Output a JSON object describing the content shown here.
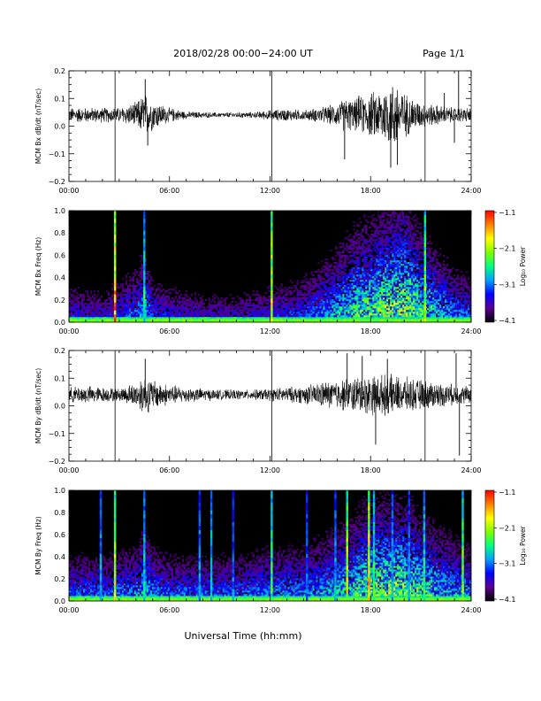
{
  "header": {
    "title": "2018/02/28  00:00−24:00 UT",
    "page": "Page 1/1"
  },
  "footer": {
    "xlabel": "Universal Time (hh:mm)"
  },
  "chart_data": [
    {
      "id": "bx_timeseries",
      "type": "line",
      "ylabel": "MCM Bx dB/dt (nT/sec)",
      "xlabel": "",
      "x_ticks": [
        "00:00",
        "06:00",
        "12:00",
        "18:00",
        "24:00"
      ],
      "xlim_hours": [
        0,
        24
      ],
      "ylim": [
        -0.2,
        0.2
      ],
      "y_ticks": [
        -0.2,
        -0.1,
        0.0,
        0.1,
        0.2
      ],
      "y_tick_labels": [
        "−0.2",
        "−0.1",
        "0.0",
        "0.1",
        "0.2"
      ],
      "baseline": 0.04,
      "vertical_lines_hours": [
        2.75,
        12.1,
        21.25
      ],
      "envelope": {
        "x_hours": [
          0,
          1,
          2,
          3,
          4,
          4.5,
          5,
          6,
          7,
          8,
          9,
          10,
          11,
          12,
          13,
          14,
          15,
          16,
          16.5,
          17,
          18,
          19,
          19.5,
          20,
          21,
          22,
          23,
          24
        ],
        "amplitude": [
          0.03,
          0.03,
          0.03,
          0.03,
          0.05,
          0.09,
          0.06,
          0.03,
          0.015,
          0.012,
          0.01,
          0.012,
          0.012,
          0.02,
          0.025,
          0.02,
          0.03,
          0.045,
          0.07,
          0.06,
          0.09,
          0.12,
          0.14,
          0.09,
          0.05,
          0.04,
          0.03,
          0.03
        ]
      },
      "spikes": [
        {
          "x_hours": 4.55,
          "y": 0.17
        },
        {
          "x_hours": 4.7,
          "y": -0.07
        },
        {
          "x_hours": 16.45,
          "y": -0.12
        },
        {
          "x_hours": 17.3,
          "y": 0.11
        },
        {
          "x_hours": 19.2,
          "y": -0.15
        },
        {
          "x_hours": 19.6,
          "y": -0.14
        },
        {
          "x_hours": 22.4,
          "y": 0.12
        },
        {
          "x_hours": 23.0,
          "y": -0.06
        },
        {
          "x_hours": 23.25,
          "y": 0.2
        }
      ]
    },
    {
      "id": "bx_spectrogram",
      "type": "heatmap",
      "ylabel": "MCM Bx Freq (Hz)",
      "x_ticks": [
        "00:00",
        "06:00",
        "12:00",
        "18:00",
        "24:00"
      ],
      "xlim_hours": [
        0,
        24
      ],
      "ylim": [
        0,
        1.0
      ],
      "y_ticks": [
        0.0,
        0.2,
        0.4,
        0.6,
        0.8,
        1.0
      ],
      "y_tick_labels": [
        "0.0",
        "0.2",
        "0.4",
        "0.6",
        "0.8",
        "1.0"
      ],
      "colorbar": {
        "label": "Log₁₀ Power",
        "range": [
          -4.1,
          -1.1
        ],
        "ticks": [
          "−1.1",
          "−2.1",
          "−3.1",
          "−4.1"
        ],
        "colormap": [
          "#000000",
          "#5a0090",
          "#0000ff",
          "#00a0ff",
          "#00ff80",
          "#80ff00",
          "#ffff00",
          "#ff8000",
          "#ff0000"
        ]
      },
      "activity": {
        "x_hours": [
          0,
          2,
          4,
          4.5,
          5,
          6,
          8,
          10,
          12,
          14,
          16,
          17,
          18,
          19,
          20,
          21,
          22,
          23,
          24
        ],
        "level": [
          0.35,
          0.3,
          0.45,
          0.6,
          0.4,
          0.35,
          0.3,
          0.3,
          0.35,
          0.4,
          0.6,
          0.7,
          0.8,
          0.85,
          0.9,
          0.75,
          0.6,
          0.5,
          0.45
        ],
        "height_hz": [
          0.25,
          0.22,
          0.35,
          0.45,
          0.3,
          0.25,
          0.2,
          0.2,
          0.25,
          0.3,
          0.45,
          0.55,
          0.6,
          0.65,
          0.7,
          0.55,
          0.45,
          0.35,
          0.3
        ]
      },
      "vertical_lines": [
        {
          "x_hours": 2.75,
          "level": 0.95
        },
        {
          "x_hours": 12.1,
          "level": 0.8
        },
        {
          "x_hours": 4.5,
          "level": 0.55
        },
        {
          "x_hours": 21.25,
          "level": 0.7
        }
      ]
    },
    {
      "id": "by_timeseries",
      "type": "line",
      "ylabel": "MCM By dB/dt (nT/sec)",
      "xlabel": "",
      "x_ticks": [
        "00:00",
        "06:00",
        "12:00",
        "18:00",
        "24:00"
      ],
      "xlim_hours": [
        0,
        24
      ],
      "ylim": [
        -0.2,
        0.2
      ],
      "y_ticks": [
        -0.2,
        -0.1,
        0.0,
        0.1,
        0.2
      ],
      "y_tick_labels": [
        "−0.2",
        "−0.1",
        "0.0",
        "0.1",
        "0.2"
      ],
      "baseline": 0.04,
      "vertical_lines_hours": [
        2.75,
        12.1,
        21.25
      ],
      "envelope": {
        "x_hours": [
          0,
          1,
          2,
          3,
          4,
          4.5,
          5,
          6,
          7,
          8,
          9,
          10,
          11,
          12,
          13,
          14,
          15,
          16,
          17,
          18,
          19,
          20,
          21,
          22,
          23,
          24
        ],
        "amplitude": [
          0.03,
          0.035,
          0.03,
          0.025,
          0.05,
          0.08,
          0.06,
          0.04,
          0.03,
          0.025,
          0.02,
          0.02,
          0.02,
          0.025,
          0.03,
          0.035,
          0.05,
          0.06,
          0.07,
          0.08,
          0.08,
          0.07,
          0.06,
          0.05,
          0.04,
          0.035
        ]
      },
      "spikes": [
        {
          "x_hours": 4.55,
          "y": 0.17
        },
        {
          "x_hours": 16.6,
          "y": 0.19
        },
        {
          "x_hours": 17.5,
          "y": 0.18
        },
        {
          "x_hours": 18.3,
          "y": -0.14
        },
        {
          "x_hours": 19.0,
          "y": 0.17
        },
        {
          "x_hours": 23.3,
          "y": -0.18
        },
        {
          "x_hours": 23.1,
          "y": 0.19
        }
      ]
    },
    {
      "id": "by_spectrogram",
      "type": "heatmap",
      "ylabel": "MCM By Freq (Hz)",
      "x_ticks": [
        "00:00",
        "06:00",
        "12:00",
        "18:00",
        "24:00"
      ],
      "xlim_hours": [
        0,
        24
      ],
      "ylim": [
        0,
        1.0
      ],
      "y_ticks": [
        0.0,
        0.2,
        0.4,
        0.6,
        0.8,
        1.0
      ],
      "y_tick_labels": [
        "0.0",
        "0.2",
        "0.4",
        "0.6",
        "0.8",
        "1.0"
      ],
      "colorbar": {
        "label": "Log₁₀ Power",
        "range": [
          -4.1,
          -1.1
        ],
        "ticks": [
          "−1.1",
          "−2.1",
          "−3.1",
          "−4.1"
        ],
        "colormap": [
          "#000000",
          "#5a0090",
          "#0000ff",
          "#00a0ff",
          "#00ff80",
          "#80ff00",
          "#ffff00",
          "#ff8000",
          "#ff0000"
        ]
      },
      "activity": {
        "x_hours": [
          0,
          2,
          4,
          4.5,
          5,
          6,
          8,
          10,
          12,
          14,
          16,
          17,
          18,
          19,
          20,
          21,
          22,
          23,
          24
        ],
        "level": [
          0.45,
          0.45,
          0.5,
          0.6,
          0.5,
          0.45,
          0.45,
          0.45,
          0.5,
          0.5,
          0.6,
          0.7,
          0.8,
          0.85,
          0.85,
          0.75,
          0.65,
          0.55,
          0.5
        ],
        "height_hz": [
          0.3,
          0.3,
          0.35,
          0.45,
          0.35,
          0.3,
          0.3,
          0.3,
          0.35,
          0.35,
          0.45,
          0.5,
          0.6,
          0.6,
          0.6,
          0.5,
          0.45,
          0.4,
          0.35
        ]
      },
      "vertical_lines": [
        {
          "x_hours": 1.9,
          "level": 0.45
        },
        {
          "x_hours": 2.75,
          "level": 0.8
        },
        {
          "x_hours": 4.5,
          "level": 0.5
        },
        {
          "x_hours": 7.8,
          "level": 0.45
        },
        {
          "x_hours": 8.5,
          "level": 0.5
        },
        {
          "x_hours": 9.8,
          "level": 0.4
        },
        {
          "x_hours": 12.1,
          "level": 0.6
        },
        {
          "x_hours": 14.2,
          "level": 0.4
        },
        {
          "x_hours": 15.9,
          "level": 0.45
        },
        {
          "x_hours": 16.6,
          "level": 0.8
        },
        {
          "x_hours": 17.9,
          "level": 0.9
        },
        {
          "x_hours": 18.2,
          "level": 0.6
        },
        {
          "x_hours": 19.3,
          "level": 0.45
        },
        {
          "x_hours": 20.3,
          "level": 0.45
        },
        {
          "x_hours": 21.2,
          "level": 0.55
        },
        {
          "x_hours": 23.5,
          "level": 0.7
        }
      ]
    }
  ]
}
